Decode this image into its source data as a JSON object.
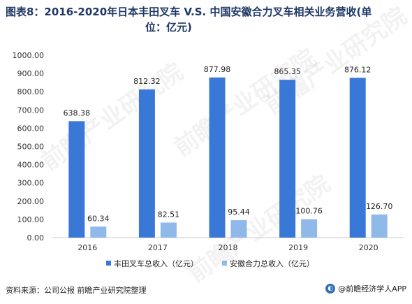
{
  "title_line1": "图表8：2016-2020年日本丰田叉车 V.S. 中国安徽合力叉车相关业务营收(单",
  "title_line2": "位：亿元)",
  "source": "资料来源：公司公报 前瞻产业研究院整理",
  "brand": "@前瞻经济学人APP",
  "watermark": "前瞻产业研究院",
  "colors": {
    "toyota": "#3a78d8",
    "heli": "#8fb9e8"
  },
  "chart_data": {
    "type": "bar",
    "categories": [
      "2016",
      "2017",
      "2018",
      "2019",
      "2020"
    ],
    "series": [
      {
        "name": "丰田叉车总收入（亿元）",
        "values": [
          638.38,
          812.32,
          877.98,
          865.35,
          876.12
        ],
        "labels": [
          "638.38",
          "812.32",
          "877.98",
          "865.35",
          "876.12"
        ]
      },
      {
        "name": "安徽合力总收入（亿元）",
        "values": [
          60.34,
          82.51,
          95.44,
          100.76,
          126.7
        ],
        "labels": [
          "60.34",
          "82.51",
          "95.44",
          "100.76",
          "126.70"
        ]
      }
    ],
    "ylim": [
      0,
      1000
    ],
    "yticks": [
      "0.00",
      "100.00",
      "200.00",
      "300.00",
      "400.00",
      "500.00",
      "600.00",
      "700.00",
      "800.00",
      "900.00",
      "1000.00"
    ],
    "grid": false,
    "legend": "bottom"
  }
}
